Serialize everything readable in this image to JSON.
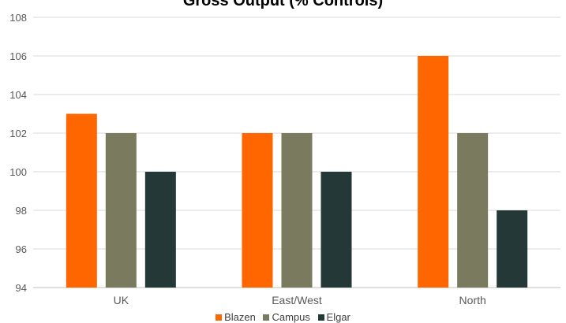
{
  "chart_data": {
    "type": "bar",
    "title": "Gross Output (% Controls)",
    "xlabel": "",
    "ylabel": "",
    "categories": [
      "UK",
      "East/West",
      "North"
    ],
    "series": [
      {
        "name": "Blazen",
        "values": [
          103,
          102,
          106
        ],
        "color": "#ff6600"
      },
      {
        "name": "Campus",
        "values": [
          102,
          102,
          102
        ],
        "color": "#7a7a5e"
      },
      {
        "name": "Elgar",
        "values": [
          100,
          100,
          98
        ],
        "color": "#243838"
      }
    ],
    "ylim": [
      94,
      108
    ],
    "yticks": [
      "94",
      "96",
      "98",
      "100",
      "102",
      "104",
      "106",
      "108"
    ],
    "grid": true,
    "legend_position": "bottom"
  }
}
